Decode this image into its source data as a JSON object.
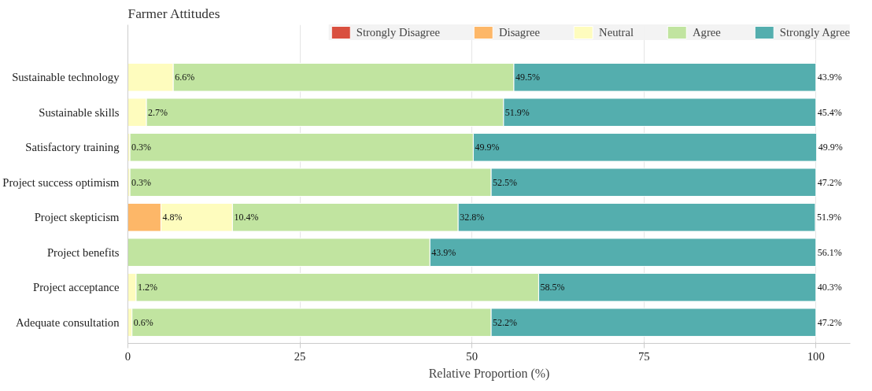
{
  "chart_data": {
    "type": "bar",
    "orientation": "horizontal",
    "stacked": true,
    "title": "Farmer Attitudes",
    "xlabel": "Relative Proportion (%)",
    "categories": [
      "Sustainable technology",
      "Sustainable skills",
      "Satisfactory training",
      "Project success optimism",
      "Project skepticism",
      "Project benefits",
      "Project acceptance",
      "Adequate consultation"
    ],
    "series": [
      {
        "name": "Strongly Disagree",
        "color": "#d9503f",
        "values": [
          0,
          0,
          0,
          0,
          0,
          0,
          0,
          0
        ]
      },
      {
        "name": "Disagree",
        "color": "#fdb768",
        "values": [
          0,
          0,
          0,
          0,
          4.8,
          0,
          0,
          0
        ],
        "value_labels": [
          null,
          null,
          null,
          null,
          "4.8%",
          null,
          null,
          null
        ]
      },
      {
        "name": "Neutral",
        "color": "#fefcbe",
        "values": [
          6.6,
          2.7,
          0.3,
          0.3,
          10.4,
          0,
          1.2,
          0.6
        ],
        "value_labels": [
          "6.6%",
          "2.7%",
          "0.3%",
          "0.3%",
          "10.4%",
          null,
          "1.2%",
          "0.6%"
        ]
      },
      {
        "name": "Agree",
        "color": "#c1e4a0",
        "values": [
          49.5,
          51.9,
          49.9,
          52.5,
          32.8,
          43.9,
          58.5,
          52.2
        ],
        "value_labels": [
          "49.5%",
          "51.9%",
          "49.9%",
          "52.5%",
          "32.8%",
          "43.9%",
          "58.5%",
          "52.2%"
        ]
      },
      {
        "name": "Strongly Agree",
        "color": "#54aeae",
        "values": [
          43.9,
          45.4,
          49.9,
          47.2,
          51.9,
          56.1,
          40.3,
          47.2
        ],
        "value_labels": [
          "43.9%",
          "45.4%",
          "49.9%",
          "47.2%",
          "51.9%",
          "56.1%",
          "40.3%",
          "47.2%"
        ]
      }
    ],
    "xlim": [
      0,
      105
    ],
    "xticks": [
      0,
      25,
      50,
      75,
      100
    ],
    "grid": "x",
    "legend": "top"
  }
}
